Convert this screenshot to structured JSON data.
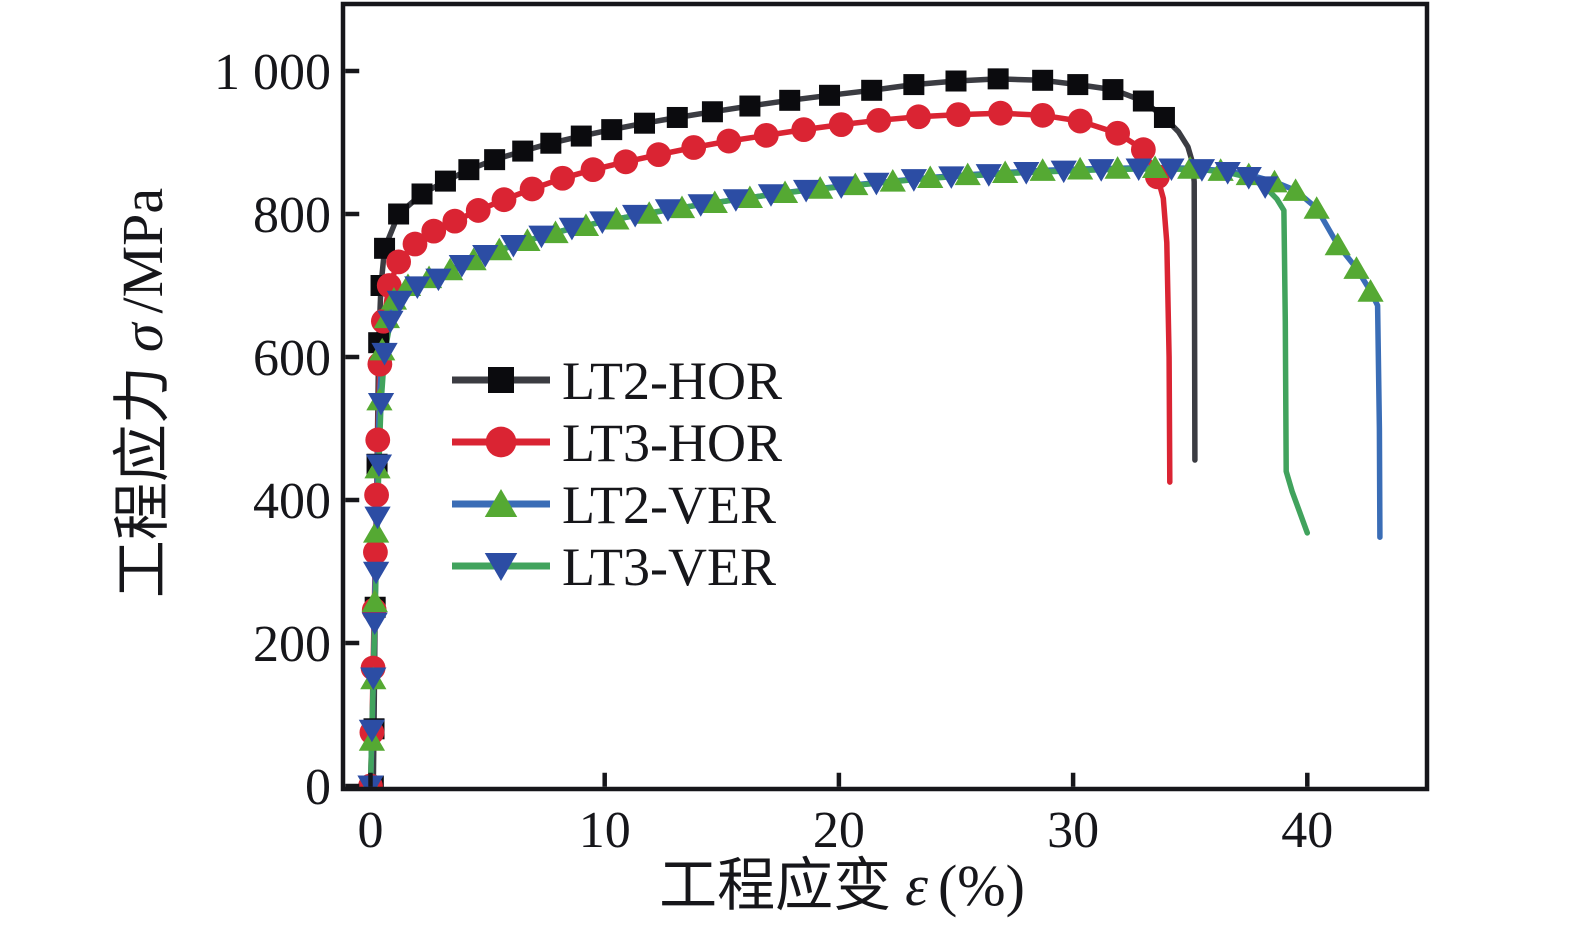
{
  "chart_data": {
    "type": "line",
    "title": "",
    "xlabel": "工程应变 ε (%)",
    "ylabel": "工程应力 σ/MPa",
    "xlabel_parts": {
      "prefix": "工程应变",
      "symbol": "ε",
      "suffix": "(%)"
    },
    "ylabel_parts": {
      "prefix": "工程应力",
      "symbol": "σ",
      "suffix": "/MPa"
    },
    "xlim": [
      -1.2,
      45.1
    ],
    "ylim": [
      0,
      1095
    ],
    "x_ticks": [
      0,
      10,
      20,
      30,
      40
    ],
    "x_tick_labels": [
      "0",
      "10",
      "20",
      "30",
      "40"
    ],
    "y_ticks": [
      0,
      200,
      400,
      600,
      800,
      1000
    ],
    "y_tick_labels": [
      "0",
      "200",
      "400",
      "600",
      "800",
      "1 000"
    ],
    "grid": false,
    "legend_position": "inside-left-middle",
    "axis_color": "#16161a",
    "series": [
      {
        "name": "LT2-HOR",
        "line_color": "#3b3c42",
        "marker": "square",
        "marker_color": "#0b0b0e",
        "points": [
          [
            0.12,
            0
          ],
          [
            0.15,
            80
          ],
          [
            0.2,
            250
          ],
          [
            0.28,
            450
          ],
          [
            0.35,
            620
          ],
          [
            0.45,
            700
          ],
          [
            0.6,
            752
          ],
          [
            1.2,
            800
          ],
          [
            2.2,
            828
          ],
          [
            3.2,
            846
          ],
          [
            4.2,
            862
          ],
          [
            5.3,
            876
          ],
          [
            6.5,
            888
          ],
          [
            7.7,
            899
          ],
          [
            9.0,
            909
          ],
          [
            10.3,
            918
          ],
          [
            11.7,
            927
          ],
          [
            13.1,
            935
          ],
          [
            14.6,
            943
          ],
          [
            16.2,
            951
          ],
          [
            17.9,
            959
          ],
          [
            19.6,
            966
          ],
          [
            21.4,
            973
          ],
          [
            23.2,
            981
          ],
          [
            25.0,
            986
          ],
          [
            26.8,
            989
          ],
          [
            28.7,
            987
          ],
          [
            30.2,
            981
          ],
          [
            31.7,
            974
          ],
          [
            33.0,
            958
          ],
          [
            33.9,
            935
          ]
        ],
        "tail": [
          [
            34.5,
            915
          ],
          [
            34.9,
            894
          ],
          [
            35.1,
            872
          ],
          [
            35.17,
            845
          ],
          [
            35.2,
            456
          ]
        ]
      },
      {
        "name": "LT3-HOR",
        "line_color": "#da2433",
        "marker": "circle",
        "marker_color": "#da2433",
        "points": [
          [
            0,
            0
          ],
          [
            0.06,
            75
          ],
          [
            0.11,
            165
          ],
          [
            0.16,
            246
          ],
          [
            0.21,
            327
          ],
          [
            0.26,
            407
          ],
          [
            0.31,
            484
          ],
          [
            0.4,
            590
          ],
          [
            0.55,
            650
          ],
          [
            0.8,
            700
          ],
          [
            1.2,
            733
          ],
          [
            1.9,
            758
          ],
          [
            2.7,
            776
          ],
          [
            3.6,
            790
          ],
          [
            4.6,
            805
          ],
          [
            5.7,
            820
          ],
          [
            6.9,
            835
          ],
          [
            8.2,
            850
          ],
          [
            9.5,
            862
          ],
          [
            10.9,
            873
          ],
          [
            12.3,
            883
          ],
          [
            13.8,
            893
          ],
          [
            15.3,
            902
          ],
          [
            16.9,
            910
          ],
          [
            18.5,
            918
          ],
          [
            20.1,
            925
          ],
          [
            21.7,
            931
          ],
          [
            23.4,
            936
          ],
          [
            25.1,
            939
          ],
          [
            26.9,
            941
          ],
          [
            28.7,
            938
          ],
          [
            30.3,
            930
          ],
          [
            31.9,
            913
          ],
          [
            33.0,
            890
          ],
          [
            33.6,
            852
          ]
        ],
        "tail": [
          [
            33.85,
            822
          ],
          [
            34.0,
            760
          ],
          [
            34.1,
            600
          ],
          [
            34.13,
            425
          ]
        ]
      },
      {
        "name": "LT2-VER",
        "line_color": "#3a6db6",
        "marker": "triangle-up",
        "marker_color": "#55a933",
        "points": [
          [
            0,
            0
          ],
          [
            0.06,
            64
          ],
          [
            0.12,
            150
          ],
          [
            0.18,
            258
          ],
          [
            0.24,
            355
          ],
          [
            0.3,
            445
          ],
          [
            0.38,
            540
          ],
          [
            0.5,
            610
          ],
          [
            0.7,
            655
          ],
          [
            1.0,
            681
          ],
          [
            1.6,
            700
          ],
          [
            2.5,
            711
          ],
          [
            3.4,
            722
          ],
          [
            4.4,
            736
          ],
          [
            5.5,
            750
          ],
          [
            6.7,
            763
          ],
          [
            7.9,
            774
          ],
          [
            9.2,
            784
          ],
          [
            10.5,
            793
          ],
          [
            11.9,
            801
          ],
          [
            13.3,
            809
          ],
          [
            14.7,
            816
          ],
          [
            16.2,
            823
          ],
          [
            17.7,
            830
          ],
          [
            19.2,
            836
          ],
          [
            20.7,
            841
          ],
          [
            22.3,
            846
          ],
          [
            23.9,
            851
          ],
          [
            25.5,
            855
          ],
          [
            27.1,
            858
          ],
          [
            28.7,
            861
          ],
          [
            30.3,
            863
          ],
          [
            31.9,
            864
          ],
          [
            33.5,
            865
          ],
          [
            35.0,
            864
          ],
          [
            36.3,
            861
          ],
          [
            37.5,
            855
          ],
          [
            38.6,
            845
          ],
          [
            39.5,
            833
          ],
          [
            40.4,
            808
          ],
          [
            41.3,
            757
          ],
          [
            42.1,
            724
          ],
          [
            42.7,
            692
          ]
        ],
        "tail": [
          [
            43.0,
            672
          ],
          [
            43.08,
            500
          ],
          [
            43.1,
            348
          ]
        ]
      },
      {
        "name": "LT3-VER",
        "line_color": "#41a35d",
        "marker": "triangle-down",
        "marker_color": "#2c4da4",
        "points": [
          [
            0,
            0
          ],
          [
            0.06,
            78
          ],
          [
            0.12,
            151
          ],
          [
            0.18,
            228
          ],
          [
            0.24,
            299
          ],
          [
            0.3,
            376
          ],
          [
            0.36,
            449
          ],
          [
            0.45,
            535
          ],
          [
            0.6,
            605
          ],
          [
            0.85,
            650
          ],
          [
            1.25,
            678
          ],
          [
            2.0,
            698
          ],
          [
            2.9,
            709
          ],
          [
            3.9,
            728
          ],
          [
            4.9,
            742
          ],
          [
            6.1,
            756
          ],
          [
            7.3,
            769
          ],
          [
            8.6,
            780
          ],
          [
            9.9,
            789
          ],
          [
            11.3,
            798
          ],
          [
            12.7,
            806
          ],
          [
            14.1,
            813
          ],
          [
            15.6,
            820
          ],
          [
            17.1,
            827
          ],
          [
            18.6,
            833
          ],
          [
            20.1,
            838
          ],
          [
            21.6,
            843
          ],
          [
            23.2,
            848
          ],
          [
            24.8,
            852
          ],
          [
            26.4,
            855
          ],
          [
            28.0,
            858
          ],
          [
            29.6,
            860
          ],
          [
            31.2,
            862
          ],
          [
            32.8,
            863
          ],
          [
            34.2,
            863
          ],
          [
            35.5,
            862
          ],
          [
            36.6,
            858
          ],
          [
            37.5,
            851
          ],
          [
            38.2,
            838
          ]
        ],
        "tail": [
          [
            38.7,
            821
          ],
          [
            39.0,
            805
          ],
          [
            39.06,
            650
          ],
          [
            39.1,
            440
          ],
          [
            39.35,
            412
          ],
          [
            40.0,
            354
          ]
        ]
      }
    ]
  }
}
